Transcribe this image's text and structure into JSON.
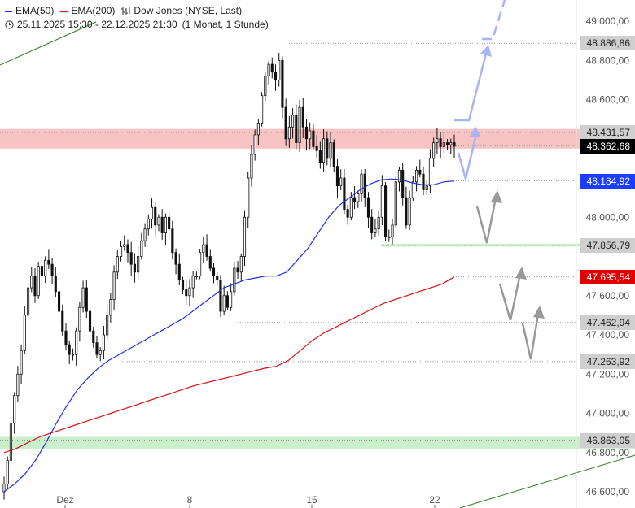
{
  "legend": {
    "ema50_label": "EMA(50)",
    "ema200_label": "EMA(200)",
    "instrument_label": "Dow Jones (NYSE, Last)",
    "period_label": "25.11.2025 15:30 - 22.12.2025 21:30",
    "interval_label": "(1 Monat, 1 Stunde)",
    "icons": [
      "ohlc-icon",
      "clock-icon"
    ]
  },
  "colors": {
    "ema50": "#2233dd",
    "ema200": "#dd1111",
    "resistance_zone": "#f4a3a3",
    "support_zone": "#a9e3a9",
    "projection": "#a8b4f5",
    "scenario": "#999999",
    "trendline": "#2d7a1f",
    "badge_blue": "#1a3dff",
    "badge_red": "#e00000",
    "badge_gray": "#cfcfcf",
    "badge_black": "#000000"
  },
  "chart_data": {
    "type": "candlestick",
    "ylim": [
      46580,
      49080
    ],
    "y_ticks": [
      "49.000,00",
      "48.800,00",
      "48.600,00",
      "48.000,00",
      "47.600,00",
      "47.400,00",
      "47.200,00",
      "47.000,00",
      "46.800,00",
      "46.600,00"
    ],
    "x_ticks": [
      "Dez",
      "8",
      "15",
      "22"
    ],
    "price_levels": [
      {
        "label": "48.886,86",
        "value": 48886.86,
        "style": "gray"
      },
      {
        "label": "48.431,57",
        "value": 48431.57,
        "style": "gray"
      },
      {
        "label": "48.362,68",
        "value": 48362.68,
        "style": "black"
      },
      {
        "label": "48.184,92",
        "value": 48184.92,
        "style": "blue"
      },
      {
        "label": "47.856,79",
        "value": 47856.79,
        "style": "gray"
      },
      {
        "label": "47.695,54",
        "value": 47695.54,
        "style": "red"
      },
      {
        "label": "47.462,94",
        "value": 47462.94,
        "style": "gray"
      },
      {
        "label": "47.263,92",
        "value": 47263.92,
        "style": "gray"
      },
      {
        "label": "46.863,05",
        "value": 46863.05,
        "style": "gray"
      }
    ],
    "zones": [
      {
        "name": "resistance",
        "from": 48350,
        "to": 48450
      },
      {
        "name": "support",
        "from": 46820,
        "to": 46880
      },
      {
        "name": "support-thin",
        "from": 47850,
        "to": 47865
      }
    ],
    "close_series": [
      46640,
      46760,
      46950,
      47090,
      47200,
      47320,
      47500,
      47640,
      47700,
      47600,
      47750,
      47700,
      47780,
      47760,
      47700,
      47620,
      47520,
      47420,
      47350,
      47300,
      47300,
      47420,
      47540,
      47640,
      47520,
      47420,
      47360,
      47300,
      47320,
      47400,
      47500,
      47580,
      47720,
      47800,
      47850,
      47860,
      47820,
      47760,
      47720,
      47800,
      47880,
      47940,
      47990,
      48050,
      47960,
      48000,
      47920,
      48000,
      47940,
      47820,
      47760,
      47680,
      47630,
      47600,
      47640,
      47700,
      47700,
      47820,
      47860,
      47800,
      47740,
      47700,
      47680,
      47520,
      47600,
      47540,
      47620,
      47740,
      47720,
      47800,
      48000,
      48200,
      48320,
      48420,
      48480,
      48620,
      48720,
      48780,
      48740,
      48700,
      48800,
      48560,
      48400,
      48460,
      48520,
      48380,
      48560,
      48460,
      48400,
      48440,
      48360,
      48340,
      48280,
      48400,
      48300,
      48380,
      48260,
      48160,
      48200,
      48040,
      48000,
      48100,
      48080,
      48120,
      48220,
      48100,
      48000,
      47920,
      47940,
      48000,
      48160,
      47900,
      47900,
      47960,
      48180,
      48240,
      48100,
      47960,
      48100,
      48180,
      48240,
      48220,
      48140,
      48160,
      48300,
      48380,
      48400,
      48360,
      48380,
      48370,
      48380,
      48362
    ],
    "ema50": [
      46600,
      46640,
      46690,
      46760,
      46850,
      46950,
      47040,
      47120,
      47180,
      47230,
      47270,
      47300,
      47330,
      47360,
      47390,
      47420,
      47450,
      47480,
      47520,
      47560,
      47600,
      47640,
      47660,
      47680,
      47690,
      47700,
      47700,
      47720,
      47780,
      47840,
      47920,
      48000,
      48060,
      48100,
      48140,
      48170,
      48190,
      48195,
      48190,
      48175,
      48165,
      48165,
      48180,
      48184.92
    ],
    "ema200": [
      46800,
      46820,
      46850,
      46880,
      46900,
      46920,
      46940,
      46960,
      46980,
      47000,
      47020,
      47040,
      47060,
      47080,
      47100,
      47120,
      47140,
      47155,
      47170,
      47185,
      47200,
      47215,
      47230,
      47240,
      47270,
      47320,
      47370,
      47410,
      47440,
      47470,
      47500,
      47530,
      47560,
      47580,
      47600,
      47620,
      47640,
      47660,
      47695.54
    ],
    "projection_up": [
      [
        48184.92,
        "dip"
      ],
      [
        48431.57,
        "up"
      ],
      [
        48886.86,
        "target"
      ],
      [
        49080,
        "extends"
      ]
    ],
    "scenario_moves": [
      "47856.79 bounce",
      "47462.94 bounce",
      "47263.92 bounce"
    ]
  }
}
